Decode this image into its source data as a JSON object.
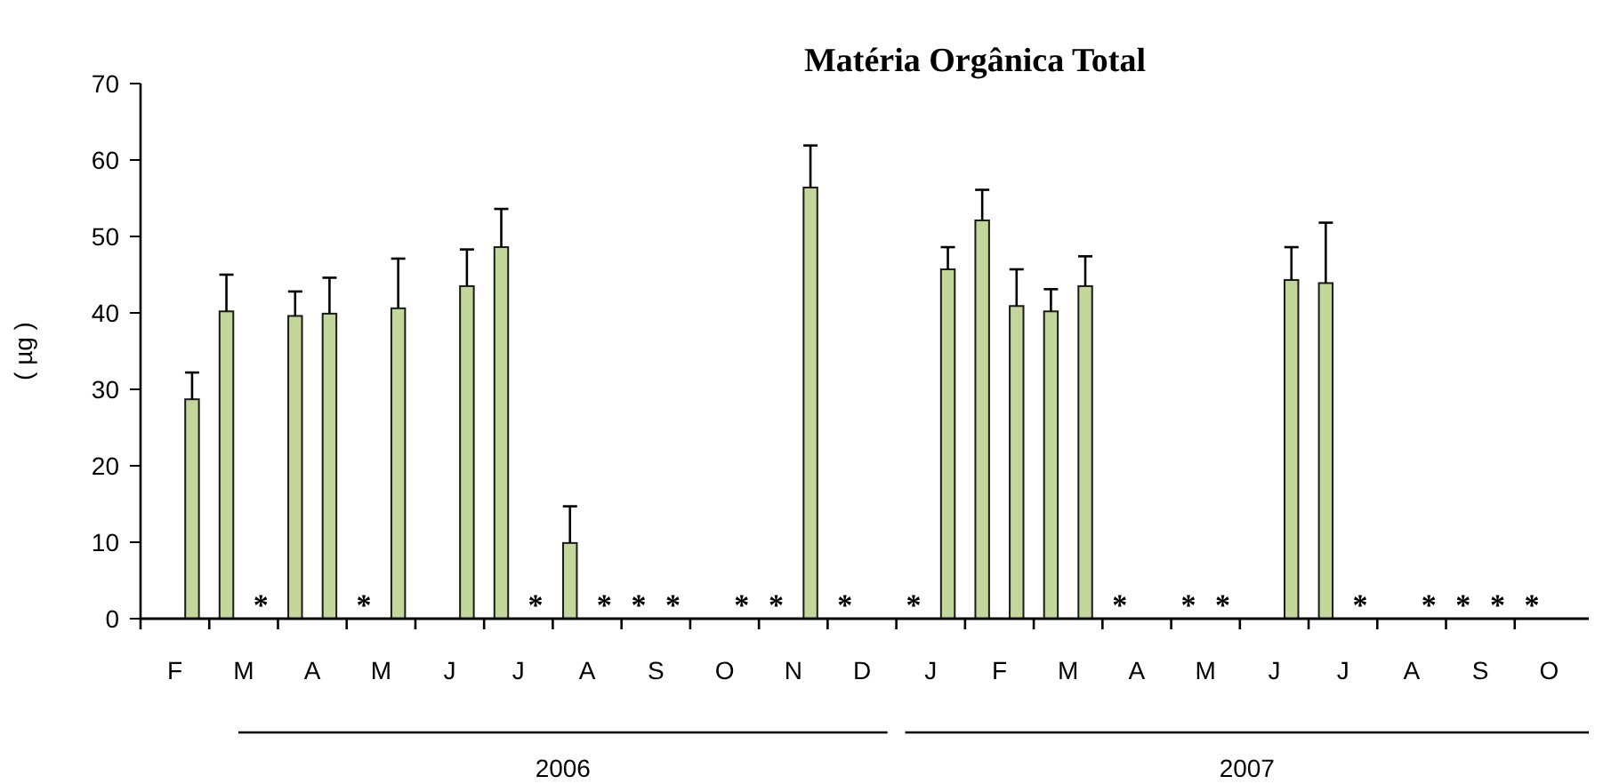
{
  "chart_data": {
    "type": "bar",
    "title": "Matéria Orgânica Total",
    "ylabel": "( µg )",
    "categories": [
      "F",
      "M",
      "A",
      "M",
      "J",
      "J",
      "A",
      "S",
      "O",
      "N",
      "D",
      "J",
      "F",
      "M",
      "A",
      "M",
      "J",
      "J",
      "A",
      "S",
      "O"
    ],
    "series": [
      {
        "color": "#c4d79b",
        "values": [
          null,
          40.2,
          39.6,
          0,
          null,
          48.6,
          9.9,
          0,
          null,
          0,
          0,
          0,
          52.1,
          40.2,
          0,
          0,
          null,
          43.9,
          null,
          0,
          0
        ],
        "errors": [
          null,
          [
            40.2,
            45
          ],
          [
            39.6,
            42.8
          ],
          null,
          null,
          [
            48.6,
            53.6
          ],
          [
            9.9,
            14.7
          ],
          null,
          null,
          null,
          null,
          null,
          [
            52.1,
            56.1
          ],
          [
            40.2,
            43.1
          ],
          null,
          null,
          null,
          [
            43.9,
            51.8
          ],
          null,
          null,
          null
        ],
        "value_labels": [
          null,
          null,
          null,
          "*",
          null,
          null,
          null,
          "*",
          null,
          "*",
          "*",
          "*",
          null,
          null,
          "*",
          "*",
          null,
          null,
          null,
          "*",
          "*"
        ]
      },
      {
        "color": "#c4d79b",
        "values": [
          28.7,
          0,
          39.9,
          40.6,
          43.5,
          0,
          0,
          0,
          0,
          56.4,
          null,
          45.7,
          40.9,
          43.5,
          null,
          0,
          44.3,
          0,
          0,
          0,
          null
        ],
        "errors": [
          [
            28.7,
            32.2
          ],
          null,
          [
            39.9,
            44.6
          ],
          [
            40.6,
            47.1
          ],
          [
            43.5,
            48.3
          ],
          null,
          null,
          null,
          null,
          [
            56.4,
            61.9
          ],
          null,
          [
            45.7,
            48.6
          ],
          [
            40.9,
            45.7
          ],
          [
            43.5,
            47.4
          ],
          null,
          null,
          [
            44.3,
            48.6
          ],
          null,
          null,
          null,
          null
        ],
        "value_labels": [
          null,
          "*",
          null,
          null,
          null,
          "*",
          "*",
          "*",
          "*",
          null,
          null,
          null,
          null,
          null,
          null,
          "*",
          null,
          "*",
          "*",
          "*",
          null
        ]
      }
    ],
    "ylim": [
      0,
      70
    ],
    "yticks": [
      0,
      10,
      20,
      30,
      40,
      50,
      60,
      70
    ],
    "annotations": [
      "2006",
      "2007"
    ]
  }
}
